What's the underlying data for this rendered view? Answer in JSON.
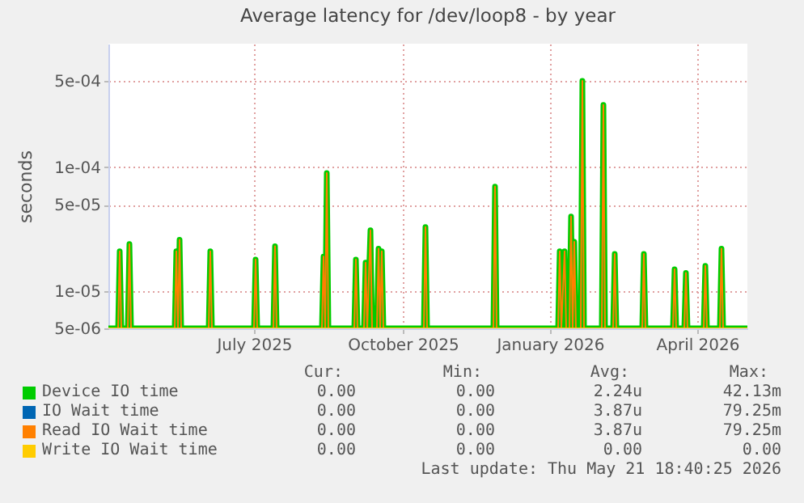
{
  "chart_data": {
    "type": "line",
    "title": "Average latency for /dev/loop8 - by year",
    "ylabel": "seconds",
    "log": "y",
    "grid": true,
    "legend": "bottom",
    "marker": "none",
    "line_style": "solid",
    "xlim": [
      "2025-04-21",
      "2026-05-21"
    ],
    "xticks": [
      {
        "value": "2025-07-20",
        "label": "July 2025"
      },
      {
        "value": "2025-10-20",
        "label": "October 2025"
      },
      {
        "value": "2026-01-19",
        "label": "January 2026"
      },
      {
        "value": "2026-04-20",
        "label": "April 2026"
      }
    ],
    "ylim": [
      5e-06,
      0.001
    ],
    "yticks": [
      {
        "value": 5e-06,
        "label": "5e-06"
      },
      {
        "value": 1e-05,
        "label": "1e-05"
      },
      {
        "value": 5e-05,
        "label": "5e-05"
      },
      {
        "value": 0.0001,
        "label": "1e-04"
      },
      {
        "value": 0.0005,
        "label": "5e-04"
      }
    ],
    "x": [
      "2025-04-21",
      "2025-04-27",
      "2025-04-28",
      "2025-04-29",
      "2025-05-03",
      "2025-05-04",
      "2025-05-05",
      "2025-06-01",
      "2025-06-02",
      "2025-06-03",
      "2025-06-04",
      "2025-06-05",
      "2025-06-22",
      "2025-06-23",
      "2025-06-24",
      "2025-07-20",
      "2025-07-21",
      "2025-07-22",
      "2025-08-01",
      "2025-08-02",
      "2025-08-03",
      "2025-08-31",
      "2025-09-01",
      "2025-09-02",
      "2025-09-03",
      "2025-09-04",
      "2025-09-20",
      "2025-09-21",
      "2025-09-22",
      "2025-09-26",
      "2025-09-27",
      "2025-09-28",
      "2025-09-30",
      "2025-10-01",
      "2025-10-04",
      "2025-10-05",
      "2025-10-06",
      "2025-10-07",
      "2025-10-08",
      "2025-11-02",
      "2025-11-03",
      "2025-11-04",
      "2025-12-15",
      "2025-12-16",
      "2025-12-17",
      "2026-01-24",
      "2026-01-25",
      "2026-01-26",
      "2026-01-28",
      "2026-01-29",
      "2026-01-31",
      "2026-02-01",
      "2026-02-02",
      "2026-02-03",
      "2026-02-04",
      "2026-02-07",
      "2026-02-08",
      "2026-02-09",
      "2026-02-20",
      "2026-02-21",
      "2026-02-22",
      "2026-02-27",
      "2026-02-28",
      "2026-03-01",
      "2026-03-17",
      "2026-03-18",
      "2026-03-19",
      "2026-04-05",
      "2026-04-06",
      "2026-04-07",
      "2026-04-12",
      "2026-04-13",
      "2026-04-14",
      "2026-04-24",
      "2026-04-25",
      "2026-04-26",
      "2026-05-04",
      "2026-05-05",
      "2026-05-06",
      "2026-05-21"
    ],
    "series": [
      {
        "name": "Device IO time",
        "color": "#00cc00",
        "values": [
          5e-06,
          5e-06,
          2.1e-05,
          5e-06,
          5e-06,
          2.4e-05,
          5e-06,
          5e-06,
          2.1e-05,
          5e-06,
          2.6e-05,
          5e-06,
          5e-06,
          2.1e-05,
          5e-06,
          5e-06,
          1.8e-05,
          5e-06,
          5e-06,
          2.3e-05,
          5e-06,
          5e-06,
          1.9e-05,
          5e-06,
          9e-05,
          5e-06,
          5e-06,
          1.8e-05,
          5e-06,
          5e-06,
          1.7e-05,
          5e-06,
          3.1e-05,
          5e-06,
          5e-06,
          2.2e-05,
          5e-06,
          2.1e-05,
          5e-06,
          5e-06,
          3.3e-05,
          5e-06,
          5e-06,
          7e-05,
          5e-06,
          5e-06,
          2.1e-05,
          5e-06,
          2.1e-05,
          5e-06,
          5e-06,
          4e-05,
          5e-06,
          2.5e-05,
          5e-06,
          5e-06,
          0.0005,
          5e-06,
          5e-06,
          0.00032,
          5e-06,
          5e-06,
          2e-05,
          5e-06,
          5e-06,
          2e-05,
          5e-06,
          5e-06,
          1.5e-05,
          5e-06,
          5e-06,
          1.4e-05,
          5e-06,
          5e-06,
          1.6e-05,
          5e-06,
          5e-06,
          2.2e-05,
          5e-06,
          5e-06
        ]
      },
      {
        "name": "IO Wait time",
        "color": "#0066b3",
        "values": [
          null,
          null,
          null,
          null,
          null,
          null,
          null,
          null,
          null,
          null,
          null,
          null,
          null,
          null,
          null,
          null,
          null,
          null,
          null,
          null,
          null,
          null,
          null,
          null,
          null,
          null,
          null,
          null,
          null,
          null,
          null,
          null,
          null,
          null,
          null,
          null,
          null,
          null,
          null,
          null,
          null,
          null,
          null,
          null,
          null,
          null,
          null,
          null,
          null,
          null,
          null,
          null,
          null,
          null,
          null,
          null,
          null,
          null,
          null,
          null,
          null,
          null,
          null,
          null,
          null,
          null,
          null,
          null,
          null,
          null,
          null,
          null,
          null,
          null,
          null,
          null,
          null,
          null,
          null,
          null
        ]
      },
      {
        "name": "Read IO Wait time",
        "color": "#ff8000",
        "values": [
          5e-06,
          5e-06,
          2.1e-05,
          5e-06,
          5e-06,
          2.4e-05,
          5e-06,
          5e-06,
          2.1e-05,
          5e-06,
          2.6e-05,
          5e-06,
          5e-06,
          2.1e-05,
          5e-06,
          5e-06,
          1.8e-05,
          5e-06,
          5e-06,
          2.3e-05,
          5e-06,
          5e-06,
          1.9e-05,
          5e-06,
          9e-05,
          5e-06,
          5e-06,
          1.8e-05,
          5e-06,
          5e-06,
          1.7e-05,
          5e-06,
          3.1e-05,
          5e-06,
          5e-06,
          2.2e-05,
          5e-06,
          2.1e-05,
          5e-06,
          5e-06,
          3.3e-05,
          5e-06,
          5e-06,
          7e-05,
          5e-06,
          5e-06,
          2.1e-05,
          5e-06,
          2.1e-05,
          5e-06,
          5e-06,
          4e-05,
          5e-06,
          2.5e-05,
          5e-06,
          5e-06,
          0.0005,
          5e-06,
          5e-06,
          0.00032,
          5e-06,
          5e-06,
          2e-05,
          5e-06,
          5e-06,
          2e-05,
          5e-06,
          5e-06,
          1.5e-05,
          5e-06,
          5e-06,
          1.4e-05,
          5e-06,
          5e-06,
          1.6e-05,
          5e-06,
          5e-06,
          2.2e-05,
          5e-06,
          5e-06
        ]
      },
      {
        "name": "Write IO Wait time",
        "color": "#ffcc00",
        "values": [
          5e-06,
          5e-06,
          5e-06,
          5e-06,
          5e-06,
          5e-06,
          5e-06,
          5e-06,
          5e-06,
          5e-06,
          5e-06,
          5e-06,
          5e-06,
          5e-06,
          5e-06,
          5e-06,
          5e-06,
          5e-06,
          5e-06,
          5e-06,
          5e-06,
          5e-06,
          5e-06,
          5e-06,
          5e-06,
          5e-06,
          5e-06,
          5e-06,
          5e-06,
          5e-06,
          5e-06,
          5e-06,
          5e-06,
          5e-06,
          5e-06,
          5e-06,
          5e-06,
          5e-06,
          5e-06,
          5e-06,
          5e-06,
          5e-06,
          5e-06,
          5e-06,
          5e-06,
          5e-06,
          5e-06,
          5e-06,
          5e-06,
          5e-06,
          5e-06,
          5e-06,
          5e-06,
          5e-06,
          5e-06,
          5e-06,
          5e-06,
          5e-06,
          5e-06,
          5e-06,
          5e-06,
          5e-06,
          5e-06,
          5e-06,
          5e-06,
          5e-06,
          5e-06,
          5e-06,
          5e-06,
          5e-06,
          5e-06,
          5e-06,
          5e-06,
          5e-06,
          5e-06,
          5e-06,
          5e-06,
          5e-06,
          5e-06,
          5e-06
        ]
      }
    ],
    "annotations": [
      "Cur:",
      "Min:",
      "Avg:",
      "Max:",
      "0.00",
      "0.00",
      "2.24u",
      "42.13m",
      "0.00",
      "0.00",
      "3.87u",
      "79.25m",
      "0.00",
      "0.00",
      "3.87u",
      "79.25m",
      "0.00",
      "0.00",
      "0.00",
      "0.00",
      "Last update: Thu May 21 18:40:25 2026"
    ]
  }
}
